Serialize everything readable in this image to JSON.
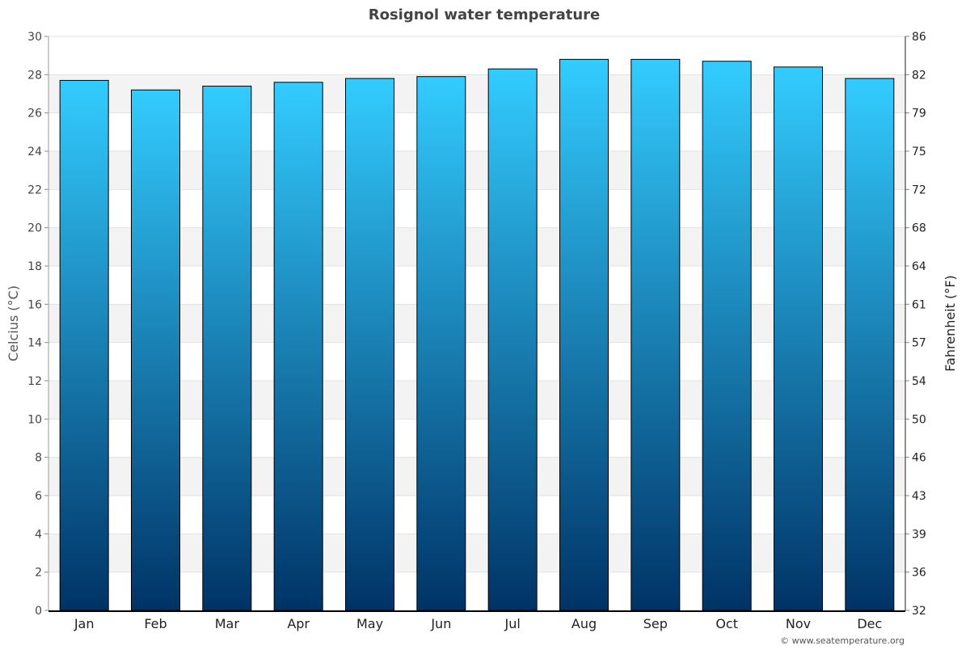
{
  "chart_data": {
    "type": "bar",
    "title": "Rosignol water temperature",
    "ylabel": "Celcius (°C)",
    "ylabel_right": "Fahrenheit (°F)",
    "xlabel": "",
    "categories": [
      "Jan",
      "Feb",
      "Mar",
      "Apr",
      "May",
      "Jun",
      "Jul",
      "Aug",
      "Sep",
      "Oct",
      "Nov",
      "Dec"
    ],
    "values": [
      27.7,
      27.2,
      27.4,
      27.6,
      27.8,
      27.9,
      28.3,
      28.8,
      28.8,
      28.7,
      28.4,
      27.8
    ],
    "ylim": [
      0,
      30
    ],
    "yticks": [
      0,
      2,
      4,
      6,
      8,
      10,
      12,
      14,
      16,
      18,
      20,
      22,
      24,
      26,
      28,
      30
    ],
    "yticks_right": [
      "32",
      "36",
      "39",
      "43",
      "46",
      "50",
      "54",
      "57",
      "61",
      "64",
      "68",
      "72",
      "75",
      "79",
      "82",
      "86"
    ],
    "grid": true,
    "colors": {
      "bar_top": "#33ccff",
      "bar_bottom": "#003366",
      "band": "#f3f3f3"
    }
  },
  "credit": "© www.seatemperature.org"
}
